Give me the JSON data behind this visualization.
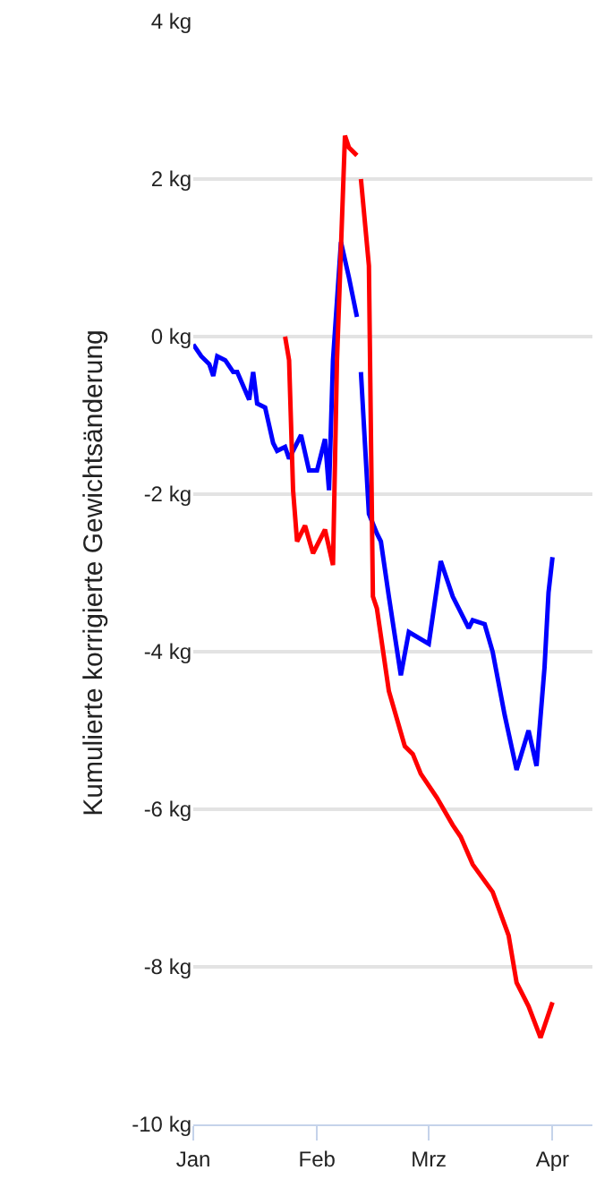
{
  "chart_data": {
    "type": "line",
    "ylabel": "Kumulierte korrigierte Gewichtsänderung",
    "xlim": [
      "--01-01",
      "--04-11"
    ],
    "xticks": [
      {
        "value": "--01-01",
        "label": "Jan"
      },
      {
        "value": "--02-01",
        "label": "Feb"
      },
      {
        "value": "--03-01",
        "label": "Mrz"
      },
      {
        "value": "--04-01",
        "label": "Apr"
      }
    ],
    "ylim": [
      -10,
      4
    ],
    "yticks": [
      {
        "value": -10,
        "label": "-10 kg"
      },
      {
        "value": -8,
        "label": "-8 kg"
      },
      {
        "value": -6,
        "label": "-6 kg"
      },
      {
        "value": -4,
        "label": "-4 kg"
      },
      {
        "value": -2,
        "label": "-2 kg"
      },
      {
        "value": 0,
        "label": "0 kg"
      },
      {
        "value": 2,
        "label": "2 kg"
      },
      {
        "value": 4,
        "label": "4 kg"
      }
    ],
    "grid": "y",
    "marker": "none",
    "line_style": "solid",
    "series": [
      {
        "color": "#0000ff",
        "x": [
          "--01-01",
          "--01-03",
          "--01-05",
          "--01-06",
          "--01-07",
          "--01-09",
          "--01-11",
          "--01-12",
          "--01-15",
          "--01-16",
          "--01-17",
          "--01-19",
          "--01-21",
          "--01-22",
          "--01-24",
          "--01-25",
          "--01-28",
          "--01-30",
          "--02-01",
          "--02-03",
          "--02-04",
          "--02-05",
          "--02-07",
          "--02-09",
          "--02-11",
          null,
          "--02-12",
          "--02-14",
          "--02-16",
          "--02-17",
          "--02-19",
          "--02-22",
          "--02-24",
          "--03-01",
          "--03-04",
          "--03-07",
          "--03-11",
          "--03-12",
          "--03-15",
          "--03-17",
          "--03-20",
          "--03-23",
          "--03-26",
          "--03-28",
          "--03-30",
          "--03-31",
          "--04-01"
        ],
        "values": [
          -0.1,
          -0.25,
          -0.35,
          -0.5,
          -0.25,
          -0.3,
          -0.45,
          -0.45,
          -0.8,
          -0.45,
          -0.85,
          -0.9,
          -1.35,
          -1.45,
          -1.4,
          -1.55,
          -1.25,
          -1.7,
          -1.7,
          -1.3,
          -1.95,
          -0.3,
          1.2,
          0.75,
          0.25,
          null,
          -0.45,
          -2.25,
          -2.5,
          -2.6,
          -3.3,
          -4.3,
          -3.75,
          -3.9,
          -2.85,
          -3.3,
          -3.7,
          -3.6,
          -3.65,
          -4.0,
          -4.8,
          -5.5,
          -5.0,
          -5.45,
          -4.2,
          -3.25,
          -2.8
        ]
      },
      {
        "color": "#ff0000",
        "x": [
          "--01-24",
          "--01-25",
          "--01-26",
          "--01-27",
          "--01-29",
          "--01-31",
          "--02-03",
          "--02-05",
          "--02-06",
          "--02-08",
          "--02-09",
          "--02-11",
          null,
          "--02-12",
          "--02-14",
          "--02-15",
          "--02-16",
          "--02-19",
          "--02-23",
          "--02-25",
          "--02-27",
          "--03-03",
          "--03-07",
          "--03-09",
          "--03-12",
          "--03-17",
          "--03-21",
          "--03-23",
          "--03-26",
          "--03-29",
          "--04-01"
        ],
        "values": [
          0.0,
          -0.3,
          -1.95,
          -2.6,
          -2.4,
          -2.75,
          -2.45,
          -2.9,
          -0.3,
          2.55,
          2.4,
          2.3,
          null,
          2.0,
          0.9,
          -3.3,
          -3.45,
          -4.5,
          -5.2,
          -5.3,
          -5.55,
          -5.85,
          -6.2,
          -6.35,
          -6.7,
          -7.05,
          -7.6,
          -8.2,
          -8.5,
          -8.9,
          -8.45
        ]
      }
    ]
  }
}
